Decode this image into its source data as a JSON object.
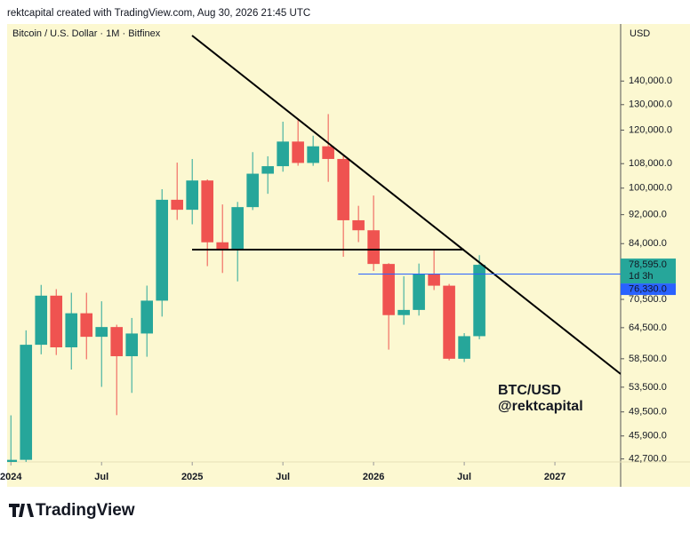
{
  "chart_data": {
    "type": "candlestick",
    "header": "rektcapital created with TradingView.com, Aug 30, 2026 21:45 UTC",
    "title": "Bitcoin / U.S. Dollar · 1M · Bitfinex",
    "currency": "USD",
    "brand": "TradingView",
    "annotations": [
      "BTC/USD",
      "@rektcapital"
    ],
    "up_color": "#26a69a",
    "down_color": "#ef5350",
    "log_scale": true,
    "open": [
      42280,
      42580,
      61130,
      71330,
      60640,
      67490,
      62680,
      64630,
      58970,
      63330,
      70220,
      96410,
      93430,
      102430,
      84350,
      82550,
      94210,
      104640,
      107140,
      115760,
      108240,
      114050,
      109600,
      90400,
      87600,
      78800,
      67100,
      68200,
      76400,
      73600,
      58500,
      62800
    ],
    "high": [
      48970,
      63970,
      73780,
      72800,
      71980,
      71980,
      70080,
      65100,
      66500,
      73620,
      99650,
      108350,
      109590,
      102780,
      95000,
      95760,
      111980,
      110530,
      123220,
      124500,
      117900,
      126200,
      111000,
      94600,
      97700,
      79000,
      75800,
      78900,
      82400,
      74000,
      63400,
      81000
    ],
    "low": [
      38520,
      41880,
      59320,
      59190,
      56550,
      58400,
      53550,
      49000,
      52550,
      58870,
      66800,
      90500,
      89260,
      78260,
      76600,
      74600,
      93350,
      98240,
      105300,
      107300,
      107270,
      102000,
      80600,
      84400,
      77100,
      60200,
      65100,
      67000,
      72600,
      58200,
      57900,
      62200
    ],
    "close": [
      42580,
      61130,
      71330,
      60640,
      67490,
      62680,
      64630,
      58970,
      63330,
      70220,
      96410,
      93430,
      102430,
      84350,
      82550,
      94210,
      104640,
      107140,
      115760,
      108240,
      114050,
      109600,
      90400,
      87600,
      78800,
      67100,
      68200,
      76400,
      73600,
      58500,
      62800,
      78595
    ],
    "xlim": [
      -0.25,
      40.35
    ],
    "xticks": [
      {
        "value": 0,
        "label": "2024"
      },
      {
        "value": 6,
        "label": "Jul"
      },
      {
        "value": 12,
        "label": "2025"
      },
      {
        "value": 18,
        "label": "Jul"
      },
      {
        "value": 24,
        "label": "2026"
      },
      {
        "value": 30,
        "label": "Jul"
      },
      {
        "value": 36,
        "label": "2027"
      }
    ],
    "ylim": [
      42300,
      167500
    ],
    "yticks": [
      {
        "value": 140000,
        "label": "140,000.0"
      },
      {
        "value": 130000,
        "label": "130,000.0"
      },
      {
        "value": 120000,
        "label": "120,000.0"
      },
      {
        "value": 108000,
        "label": "108,000.0"
      },
      {
        "value": 100000,
        "label": "100,000.0"
      },
      {
        "value": 92000,
        "label": "92,000.0"
      },
      {
        "value": 84000,
        "label": "84,000.0"
      },
      {
        "value": 70500,
        "label": "70,500.0"
      },
      {
        "value": 64500,
        "label": "64,500.0"
      },
      {
        "value": 58500,
        "label": "58,500.0"
      },
      {
        "value": 53500,
        "label": "53,500.0"
      },
      {
        "value": 49500,
        "label": "49,500.0"
      },
      {
        "value": 45900,
        "label": "45,900.0"
      },
      {
        "value": 42700,
        "label": "42,700.0"
      }
    ],
    "last_price": {
      "value": 78595,
      "label": "78,595.0",
      "countdown": "1d 3h",
      "color": "#26a69a"
    },
    "marker_price": {
      "value": 76330,
      "label": "76,330.0",
      "color": "#2962ff"
    }
  }
}
